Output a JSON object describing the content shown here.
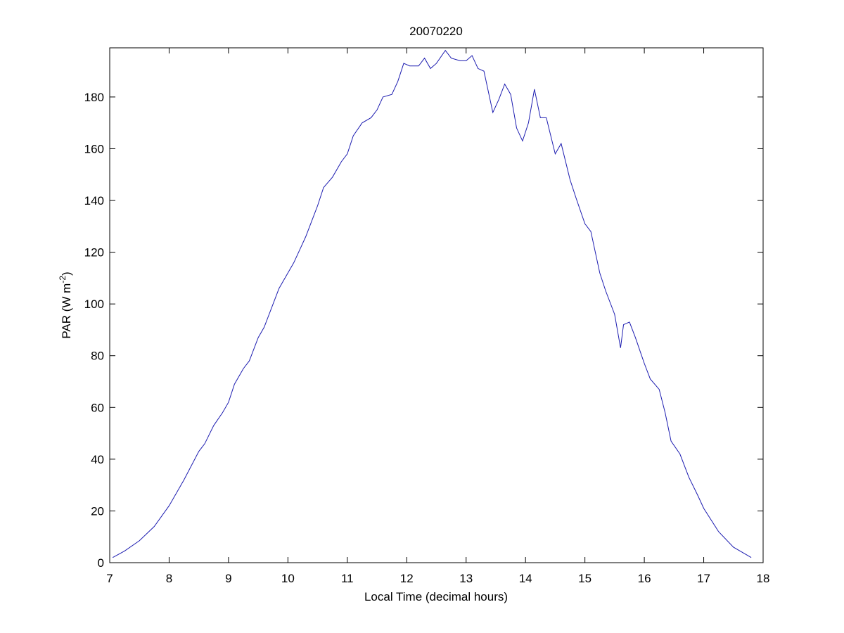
{
  "chart_data": {
    "type": "line",
    "title": "20070220",
    "xlabel": "Local Time (decimal hours)",
    "ylabel": {
      "text": "PAR (W m",
      "superscript": "-2",
      "suffix": ")"
    },
    "x": [
      7.05,
      7.25,
      7.5,
      7.75,
      8.0,
      8.25,
      8.5,
      8.6,
      8.75,
      8.9,
      9.0,
      9.1,
      9.25,
      9.35,
      9.5,
      9.6,
      9.75,
      9.85,
      10.0,
      10.1,
      10.2,
      10.3,
      10.4,
      10.5,
      10.6,
      10.75,
      10.9,
      11.0,
      11.1,
      11.25,
      11.4,
      11.5,
      11.6,
      11.75,
      11.85,
      11.95,
      12.05,
      12.2,
      12.3,
      12.4,
      12.5,
      12.65,
      12.75,
      12.9,
      13.0,
      13.1,
      13.2,
      13.3,
      13.45,
      13.55,
      13.65,
      13.75,
      13.85,
      13.95,
      14.05,
      14.15,
      14.25,
      14.35,
      14.5,
      14.6,
      14.75,
      14.85,
      15.0,
      15.1,
      15.25,
      15.35,
      15.5,
      15.6,
      15.65,
      15.75,
      15.85,
      16.0,
      16.1,
      16.25,
      16.35,
      16.45,
      16.6,
      16.75,
      16.9,
      17.0,
      17.25,
      17.5,
      17.8
    ],
    "series": [
      {
        "color": "#1c1cb0",
        "values": [
          2,
          4.5,
          8.5,
          14,
          22,
          32,
          43,
          46,
          53,
          58,
          62,
          69,
          75,
          78,
          87,
          91,
          100,
          106,
          112,
          116,
          121,
          126,
          132,
          138,
          145,
          149,
          155,
          158,
          165,
          170,
          172,
          175,
          180,
          181,
          186,
          193,
          192,
          192,
          195,
          191,
          193,
          198,
          195,
          194,
          194,
          196,
          191,
          190,
          174,
          179,
          185,
          181,
          168,
          163,
          170,
          183,
          172,
          172,
          158,
          162,
          148,
          141,
          131,
          128,
          112,
          105,
          96,
          83,
          92,
          93,
          87,
          77,
          71,
          67,
          58,
          47,
          42,
          33,
          26,
          21,
          12,
          6,
          2
        ]
      }
    ],
    "xlim": [
      7,
      18
    ],
    "ylim": [
      0,
      199
    ],
    "xticks": [
      7,
      8,
      9,
      10,
      11,
      12,
      13,
      14,
      15,
      16,
      17,
      18
    ],
    "yticks": [
      0,
      20,
      40,
      60,
      80,
      100,
      120,
      140,
      160,
      180
    ]
  }
}
